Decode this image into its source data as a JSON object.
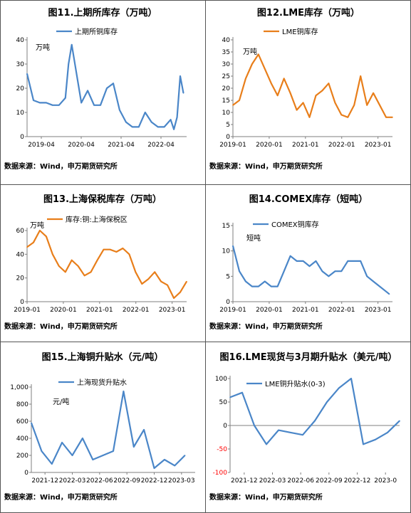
{
  "colors": {
    "blue": "#4a86c8",
    "orange": "#e87e1a",
    "red": "#ff0000",
    "axis": "#7f7f7f",
    "text": "#000000"
  },
  "chart_data": [
    {
      "id": "c11",
      "type": "line",
      "title": "图11.上期所库存（万吨）",
      "unit_label": "万吨",
      "legend": "上期所铜库存",
      "legend_position": "top-center",
      "color": "#4a86c8",
      "xlim": [
        "2019-01",
        "2023-03"
      ],
      "ylim": [
        0,
        40
      ],
      "yticks": [
        0,
        10,
        20,
        30,
        40
      ],
      "xtick_labels": [
        "2019-04",
        "2020-04",
        "2021-04",
        "2022-04"
      ],
      "grid": false,
      "x": [
        "2019-01",
        "2019-03",
        "2019-05",
        "2019-07",
        "2019-09",
        "2019-11",
        "2020-01",
        "2020-02",
        "2020-03",
        "2020-04",
        "2020-06",
        "2020-08",
        "2020-10",
        "2020-12",
        "2021-02",
        "2021-04",
        "2021-06",
        "2021-08",
        "2021-10",
        "2021-12",
        "2022-02",
        "2022-04",
        "2022-06",
        "2022-08",
        "2022-10",
        "2022-11",
        "2022-12",
        "2023-01",
        "2023-02"
      ],
      "values": [
        26,
        15,
        14,
        14,
        13,
        13,
        16,
        30,
        38,
        30,
        14,
        19,
        13,
        13,
        20,
        22,
        11,
        6,
        4,
        4,
        10,
        6,
        4,
        4,
        7,
        3,
        8,
        25,
        18
      ]
    },
    {
      "id": "c12",
      "type": "line",
      "title": "图12.LME库存（万吨）",
      "unit_label": "万吨",
      "legend": "LME铜库存",
      "legend_position": "top-center",
      "color": "#e87e1a",
      "xlim": [
        "2019-01",
        "2023-03"
      ],
      "ylim": [
        0,
        40
      ],
      "yticks": [
        0,
        5,
        10,
        15,
        20,
        25,
        30,
        35,
        40
      ],
      "xtick_labels": [
        "2019-01",
        "2020-01",
        "2021-01",
        "2022-01",
        "2023-01"
      ],
      "grid": false,
      "x": [
        "2019-01",
        "2019-03",
        "2019-05",
        "2019-07",
        "2019-09",
        "2019-11",
        "2020-01",
        "2020-03",
        "2020-05",
        "2020-07",
        "2020-09",
        "2020-11",
        "2021-01",
        "2021-03",
        "2021-05",
        "2021-07",
        "2021-09",
        "2021-11",
        "2022-01",
        "2022-03",
        "2022-05",
        "2022-07",
        "2022-09",
        "2022-11",
        "2023-01",
        "2023-03"
      ],
      "values": [
        13,
        15,
        24,
        30,
        34,
        28,
        22,
        17,
        24,
        18,
        11,
        14,
        8,
        17,
        19,
        22,
        14,
        9,
        8,
        13,
        25,
        13,
        18,
        13,
        8,
        8
      ]
    },
    {
      "id": "c13",
      "type": "line",
      "title": "图13.上海保税库存（万吨）",
      "unit_label": "万吨",
      "legend": "库存:铜:上海保税区",
      "legend_position": "top-center",
      "color": "#e87e1a",
      "xlim": [
        "2019-01",
        "2023-03"
      ],
      "ylim": [
        0,
        60
      ],
      "yticks": [
        0,
        20,
        40,
        60
      ],
      "xtick_labels": [
        "2019-01",
        "2020-01",
        "2021-01",
        "2022-01",
        "2023-01"
      ],
      "grid": false,
      "x": [
        "2019-01",
        "2019-03",
        "2019-05",
        "2019-07",
        "2019-09",
        "2019-11",
        "2020-01",
        "2020-03",
        "2020-05",
        "2020-07",
        "2020-09",
        "2020-11",
        "2021-01",
        "2021-03",
        "2021-05",
        "2021-07",
        "2021-09",
        "2021-11",
        "2022-01",
        "2022-03",
        "2022-05",
        "2022-07",
        "2022-09",
        "2022-11",
        "2023-01",
        "2023-03"
      ],
      "values": [
        46,
        50,
        60,
        55,
        40,
        30,
        25,
        35,
        30,
        22,
        25,
        35,
        44,
        44,
        42,
        45,
        40,
        25,
        15,
        19,
        25,
        17,
        14,
        3,
        8,
        17
      ]
    },
    {
      "id": "c14",
      "type": "line",
      "title": "图14.COMEX库存（短吨）",
      "unit_label": "短吨",
      "legend": "COMEX铜库存",
      "legend_position": "top-center",
      "color": "#4a86c8",
      "xlim": [
        "2019-01",
        "2023-03"
      ],
      "ylim": [
        0,
        15
      ],
      "yticks": [
        0,
        5,
        10,
        15
      ],
      "xtick_labels": [
        "2019-01",
        "2020-01",
        "2021-01",
        "2022-01",
        "2023-01"
      ],
      "grid": false,
      "x": [
        "2019-01",
        "2019-03",
        "2019-05",
        "2019-07",
        "2019-09",
        "2019-11",
        "2020-01",
        "2020-03",
        "2020-05",
        "2020-07",
        "2020-09",
        "2020-11",
        "2021-01",
        "2021-03",
        "2021-05",
        "2021-07",
        "2021-09",
        "2021-11",
        "2022-01",
        "2022-03",
        "2022-05",
        "2022-07",
        "2022-09",
        "2022-11",
        "2023-01",
        "2023-02"
      ],
      "values": [
        11,
        6,
        4,
        3,
        3,
        4,
        3,
        3,
        6,
        9,
        8,
        8,
        7,
        8,
        6,
        5,
        6,
        6,
        8,
        8,
        8,
        5,
        4,
        3,
        2,
        1.5
      ]
    },
    {
      "id": "c15",
      "type": "line",
      "title": "图15.上海铜升贴水（元/吨）",
      "unit_label": "元/吨",
      "legend": "上海现货升贴水",
      "legend_position": "top-center",
      "color": "#4a86c8",
      "xlim": [
        "2021-12",
        "2023-04"
      ],
      "ylim": [
        0,
        1000
      ],
      "yticks": [
        "0",
        "200",
        "400",
        "600",
        "800",
        "1,000"
      ],
      "xtick_labels": [
        "2021-12",
        "2022-03",
        "2022-06",
        "2022-09",
        "2022-12",
        "2023-03"
      ],
      "grid": false,
      "x": [
        "2021-12",
        "2022-01",
        "2022-02",
        "2022-03",
        "2022-04",
        "2022-05",
        "2022-06",
        "2022-07",
        "2022-08",
        "2022-09",
        "2022-10",
        "2022-11",
        "2022-12",
        "2023-01",
        "2023-02",
        "2023-03"
      ],
      "values": [
        580,
        250,
        100,
        350,
        200,
        400,
        150,
        200,
        250,
        950,
        300,
        500,
        50,
        150,
        80,
        200
      ]
    },
    {
      "id": "c16",
      "type": "line",
      "title": "图16.LME现货与3月期升贴水（美元/吨）",
      "legend": "LME铜升贴水(0-3)",
      "legend_position": "top-left",
      "color": "#4a86c8",
      "xlim": [
        "2021-12",
        "2023-02"
      ],
      "ylim": [
        -100,
        100
      ],
      "yticks": [
        -100,
        -50,
        0,
        50,
        100
      ],
      "xtick_labels": [
        "2021-12",
        "2022-03",
        "2022-06",
        "2022-09",
        "2022-12",
        "2023-0"
      ],
      "grid": false,
      "x": [
        "2021-12",
        "2022-01",
        "2022-02",
        "2022-03",
        "2022-04",
        "2022-05",
        "2022-06",
        "2022-07",
        "2022-08",
        "2022-09",
        "2022-10",
        "2022-11",
        "2022-12",
        "2023-01",
        "2023-02"
      ],
      "values": [
        60,
        70,
        0,
        -40,
        -10,
        -15,
        -20,
        10,
        50,
        80,
        100,
        -40,
        -30,
        -15,
        10
      ]
    }
  ],
  "source_text": "数据来源：Wind，申万期货研究所"
}
